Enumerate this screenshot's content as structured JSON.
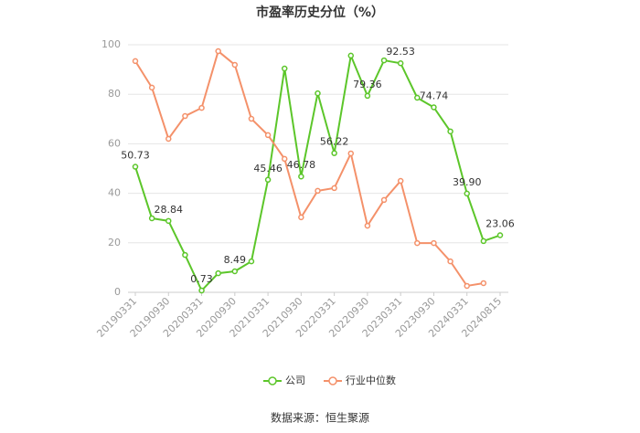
{
  "chart_data": {
    "type": "line",
    "title": "市盈率历史分位（%）",
    "source": "数据来源：恒生聚源",
    "categories": [
      "20190331",
      null,
      "20190930",
      null,
      "20200331",
      null,
      "20200930",
      null,
      "20210331",
      null,
      "20210930",
      null,
      "20220331",
      null,
      "20220930",
      null,
      "20230331",
      null,
      "20230930",
      null,
      "20240331",
      null,
      "20240815"
    ],
    "series": [
      {
        "name": "公司",
        "color": "#5cc62a",
        "values": [
          50.73,
          29.9,
          28.84,
          15.1,
          0.73,
          7.7,
          8.49,
          12.5,
          45.46,
          90.4,
          46.78,
          80.4,
          56.22,
          95.6,
          79.36,
          93.7,
          92.53,
          78.6,
          74.74,
          65,
          39.9,
          20.7,
          23.06
        ],
        "value_labels": [
          "50.73",
          null,
          "28.84",
          null,
          "0.73",
          null,
          "8.49",
          null,
          "45.46",
          null,
          "46.78",
          null,
          "56.22",
          null,
          "79.36",
          null,
          "92.53",
          null,
          "74.74",
          null,
          "39.90",
          null,
          "23.06"
        ]
      },
      {
        "name": "行业中位数",
        "color": "#f4916a",
        "values": [
          93.4,
          82.7,
          62,
          71.2,
          74.5,
          97.4,
          91.9,
          70.1,
          63.5,
          53.9,
          30.3,
          41,
          42.1,
          56.1,
          26.9,
          37.3,
          45,
          19.9,
          19.9,
          12.5,
          2.6,
          3.7,
          null
        ]
      }
    ],
    "ylim": [
      0,
      100
    ],
    "yticks": [
      0,
      20,
      40,
      60,
      80,
      100
    ],
    "grid": true,
    "legend": "bottom"
  }
}
